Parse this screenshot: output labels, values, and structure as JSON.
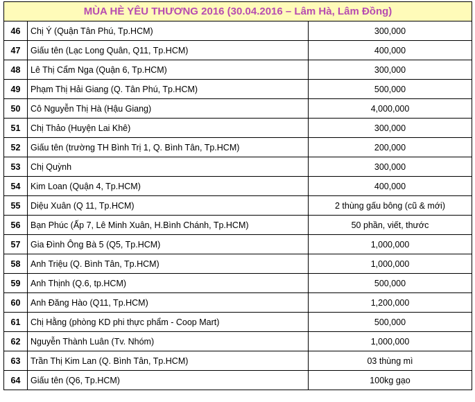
{
  "title": "MÙA HÈ YÊU THƯƠNG 2016 (30.04.2016 – Lâm Hà, Lâm Đồng)",
  "colors": {
    "title_text": "#b64cb0",
    "title_background": "#fffbb9",
    "border": "#000000"
  },
  "rows": [
    {
      "no": "46",
      "name": "Chị Ý (Quận Tân Phú, Tp.HCM)",
      "amount": "300,000"
    },
    {
      "no": "47",
      "name": "Giấu tên (Lạc Long Quân, Q11, Tp.HCM)",
      "amount": "400,000"
    },
    {
      "no": "48",
      "name": "Lê Thị Cẩm Nga (Quận 6, Tp.HCM)",
      "amount": "300,000"
    },
    {
      "no": "49",
      "name": "Phạm Thị Hải Giang (Q. Tân Phú, Tp.HCM)",
      "amount": "500,000"
    },
    {
      "no": "50",
      "name": "Cô Nguyễn Thị Hà (Hậu Giang)",
      "amount": "4,000,000"
    },
    {
      "no": "51",
      "name": "Chị Thảo (Huyện Lai Khê)",
      "amount": "300,000"
    },
    {
      "no": "52",
      "name": "Giấu tên (trường TH Bình Trị 1, Q. Bình Tân, Tp.HCM)",
      "amount": "200,000"
    },
    {
      "no": "53",
      "name": "Chị Quỳnh",
      "amount": "300,000"
    },
    {
      "no": "54",
      "name": "Kim Loan (Quận 4, Tp.HCM)",
      "amount": "400,000"
    },
    {
      "no": "55",
      "name": "Diệu Xuân (Q 11, Tp.HCM)",
      "amount": "2 thùng gấu bông (cũ & mới)"
    },
    {
      "no": "56",
      "name": "Bạn Phúc (Ấp 7, Lê Minh Xuân, H.Bình Chánh, Tp.HCM)",
      "amount": "50 phần, viết, thước"
    },
    {
      "no": "57",
      "name": "Gia Đình Ông Bà 5 (Q5, Tp.HCM)",
      "amount": "1,000,000"
    },
    {
      "no": "58",
      "name": "Anh Triệu (Q. Bình Tân, Tp.HCM)",
      "amount": "1,000,000"
    },
    {
      "no": "59",
      "name": "Anh Thịnh (Q.6, tp.HCM)",
      "amount": "500,000"
    },
    {
      "no": "60",
      "name": "Anh Đăng Hào (Q11, Tp.HCM)",
      "amount": "1,200,000"
    },
    {
      "no": "61",
      "name": "Chị Hằng (phòng KD phi thực phẩm - Coop Mart)",
      "amount": "500,000"
    },
    {
      "no": "62",
      "name": "Nguyễn Thành Luân (Tv. Nhóm)",
      "amount": "1,000,000"
    },
    {
      "no": "63",
      "name": "Trần Thị Kim Lan (Q. Bình Tân, Tp.HCM)",
      "amount": "03 thùng mì"
    },
    {
      "no": "64",
      "name": "Giấu tên (Q6, Tp.HCM)",
      "amount": "100kg gạo"
    }
  ]
}
